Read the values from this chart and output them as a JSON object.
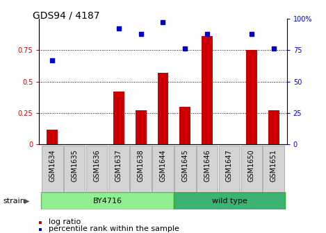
{
  "title": "GDS94 / 4187",
  "samples": [
    "GSM1634",
    "GSM1635",
    "GSM1636",
    "GSM1637",
    "GSM1638",
    "GSM1644",
    "GSM1645",
    "GSM1646",
    "GSM1647",
    "GSM1650",
    "GSM1651"
  ],
  "log_ratio": [
    0.12,
    0.0,
    0.0,
    0.42,
    0.27,
    0.57,
    0.3,
    0.86,
    0.0,
    0.75,
    0.27
  ],
  "percentile_rank": [
    67,
    null,
    null,
    92,
    88,
    97,
    76,
    88,
    null,
    88,
    76
  ],
  "group1_label": "BY4716",
  "group1_samples": [
    0,
    1,
    2,
    3,
    4,
    5
  ],
  "group2_label": "wild type",
  "group2_samples": [
    6,
    7,
    8,
    9,
    10
  ],
  "bar_color": "#CC0000",
  "dot_color": "#0000CC",
  "light_green": "#90EE90",
  "dark_green": "#3CB371",
  "gray_tick_bg": "#D3D3D3",
  "ylim_left": [
    0,
    1.0
  ],
  "ylim_right": [
    0,
    100
  ],
  "yticks_left": [
    0,
    0.25,
    0.5,
    0.75
  ],
  "ytick_labels_left": [
    "0",
    "0.25",
    "0.5",
    "0.75"
  ],
  "yticks_right": [
    0,
    25,
    50,
    75,
    100
  ],
  "ytick_labels_right": [
    "0",
    "25",
    "50",
    "75",
    "100%"
  ],
  "title_fontsize": 10,
  "axis_fontsize": 7,
  "legend_fontsize": 8,
  "bar_width": 0.5,
  "legend_item1": "log ratio",
  "legend_item2": "percentile rank within the sample",
  "strain_label": "strain"
}
